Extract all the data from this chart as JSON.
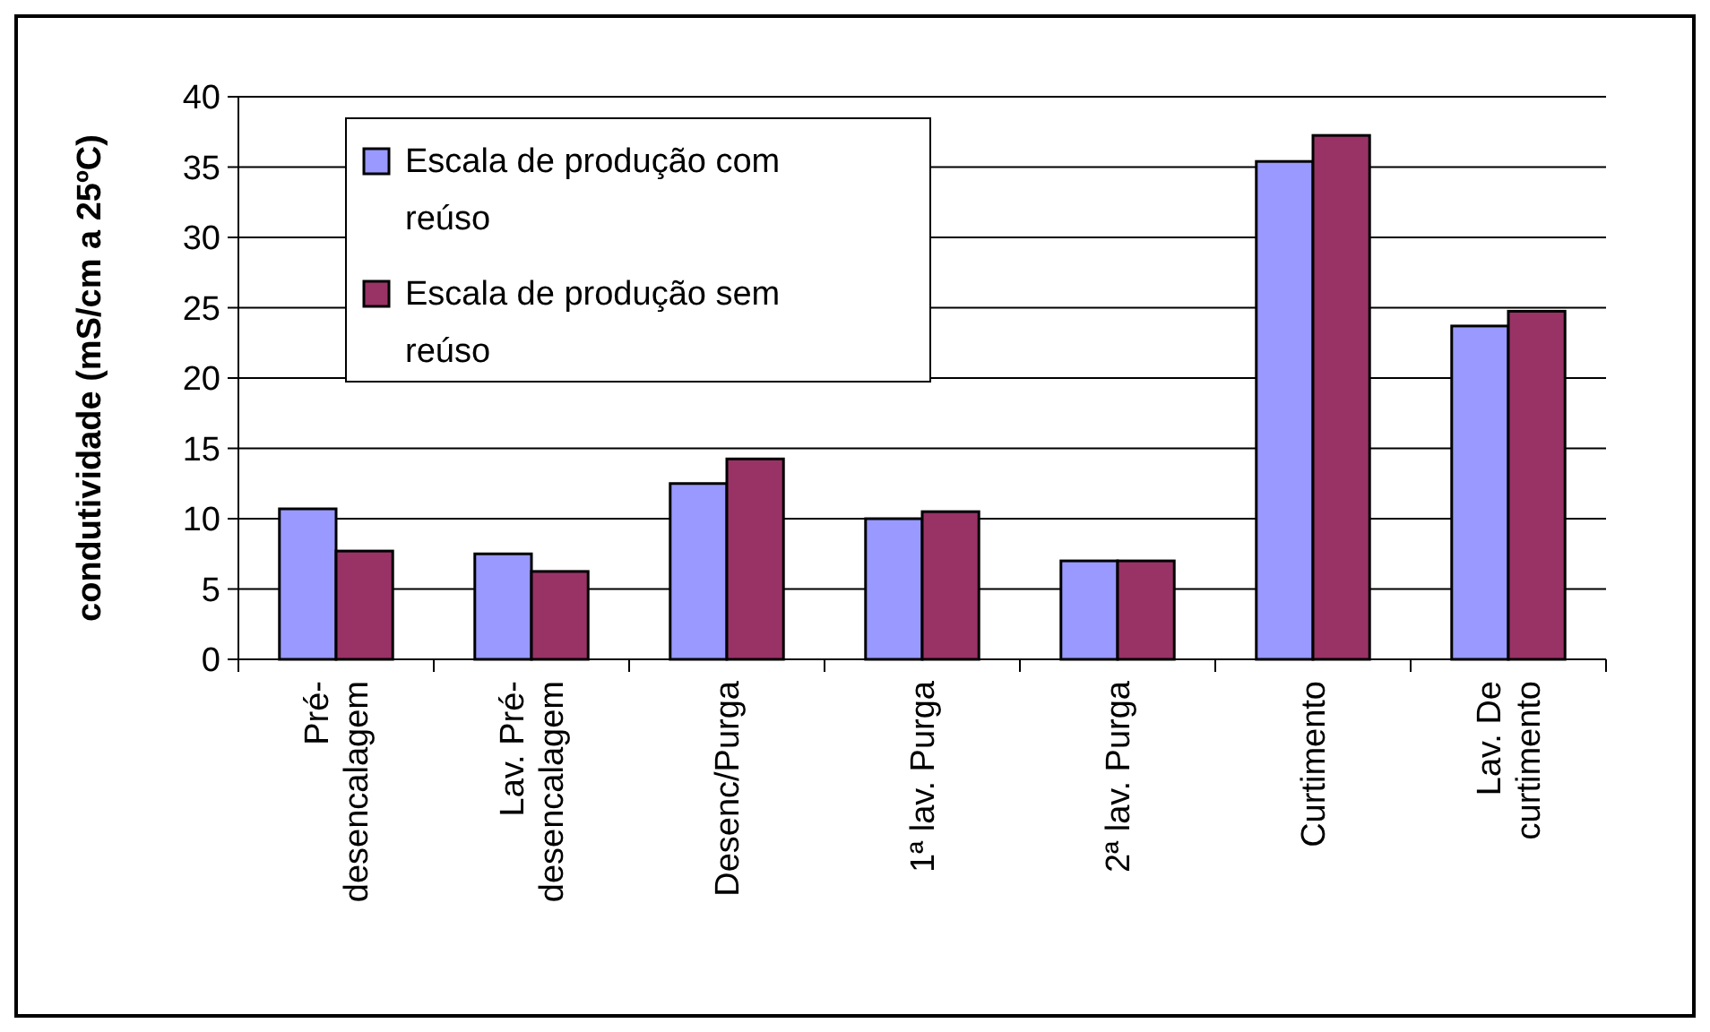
{
  "chart_data": {
    "type": "bar",
    "ylabel": "condutividade (mS/cm a 25ºC)",
    "categories": [
      "Pré-\ndesencalagem",
      "Lav. Pré-\ndesencalagem",
      "Desenc/Purga",
      "1ª lav. Purga",
      "2ª lav. Purga",
      "Curtimento",
      "Lav. De\ncurtimento"
    ],
    "series": [
      {
        "name": "Escala de produção com\nreúso",
        "color": "#9999ff",
        "values": [
          10.7,
          7.5,
          12.5,
          10.0,
          7.0,
          35.4,
          23.7
        ]
      },
      {
        "name": "Escala de produção sem\nreúso",
        "color": "#993366",
        "values": [
          7.7,
          6.25,
          14.25,
          10.5,
          7.0,
          37.25,
          24.75
        ]
      }
    ],
    "ylim": [
      0,
      40
    ],
    "yticks": [
      0,
      5,
      10,
      15,
      20,
      25,
      30,
      35,
      40
    ],
    "grid": "y",
    "legend": "top left"
  }
}
